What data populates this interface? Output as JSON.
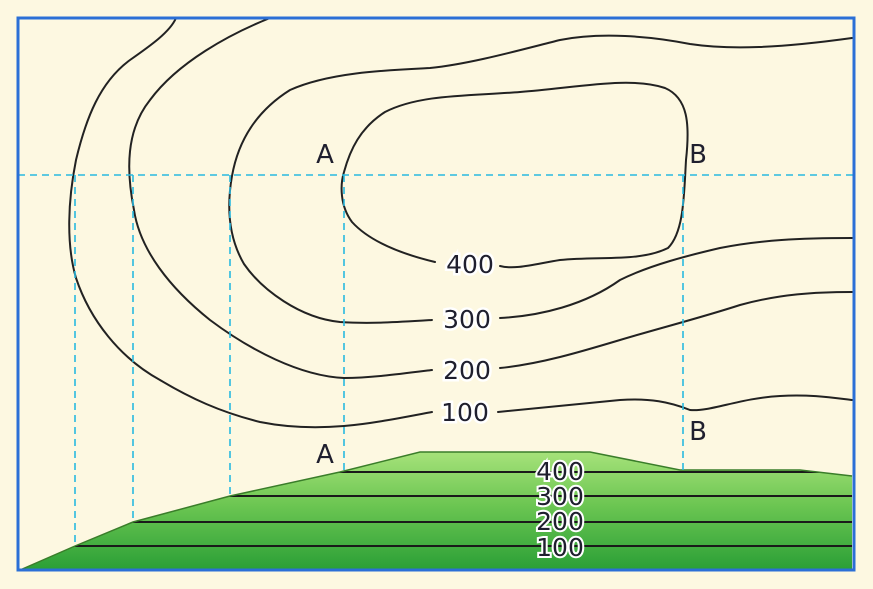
{
  "contour_labels": {
    "c400": "400",
    "c300": "300",
    "c200": "200",
    "c100": "100"
  },
  "profile_labels": {
    "p400": "400",
    "p300": "300",
    "p200": "200",
    "p100": "100"
  },
  "points": {
    "top_a": "A",
    "top_b": "B",
    "bottom_a": "A",
    "bottom_b": "B"
  },
  "colors": {
    "background": "#fdf8e1",
    "frame": "#2b6fd6",
    "guide": "#29b9e0",
    "contour": "#222222",
    "terrain_light": "#9ddc72",
    "terrain_dark": "#2fa53a"
  }
}
